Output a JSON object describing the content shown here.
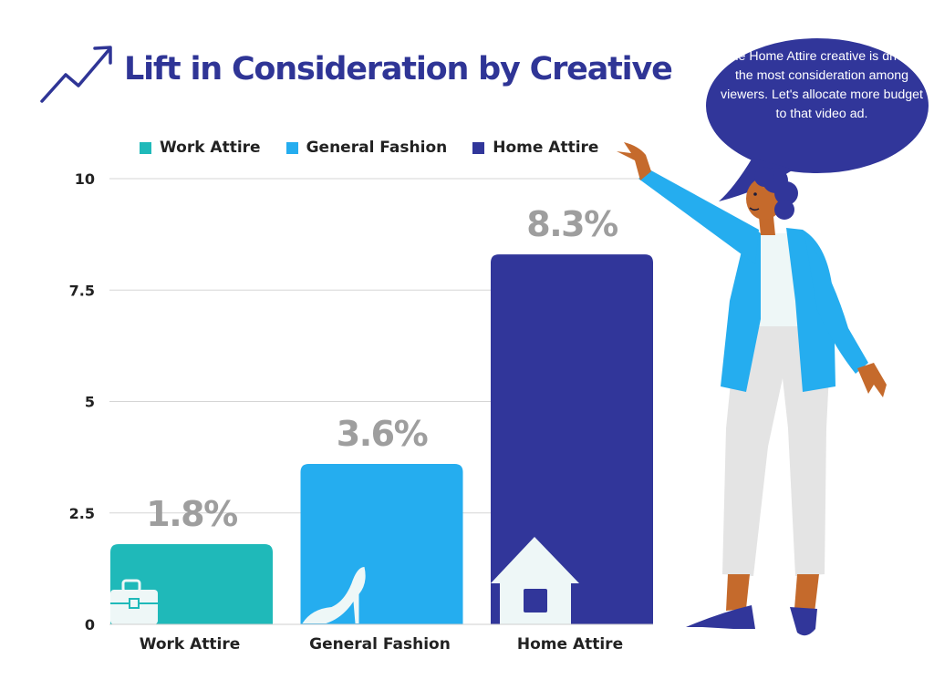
{
  "colors": {
    "title": "#2f3596",
    "work": "#1fb9b9",
    "fashion": "#25adef",
    "home": "#31369a",
    "value_label": "#9e9e9e",
    "grid": "#d5d5d5",
    "icon": "#eef7f7"
  },
  "speech": {
    "text": "The Home Attire creative is driving the most consideration among viewers. Let's allocate more budget to that video ad."
  },
  "chart_data": {
    "type": "bar",
    "title": "Lift in Consideration by Creative",
    "categories": [
      "Work Attire",
      "General Fashion",
      "Home Attire"
    ],
    "values": [
      1.8,
      3.6,
      8.3
    ],
    "value_labels": [
      "1.8%",
      "3.6%",
      "8.3%"
    ],
    "legend": [
      "Work Attire",
      "General Fashion",
      "Home Attire"
    ],
    "legend_position": "top",
    "bar_icons": [
      "briefcase-icon",
      "high-heel-icon",
      "house-icon"
    ],
    "ylim": [
      0,
      10
    ],
    "yticks": [
      0,
      2.5,
      5,
      7.5,
      10
    ],
    "ytick_labels": [
      "0",
      "2.5",
      "5",
      "7.5",
      "10"
    ],
    "grid": true,
    "xlabel": "",
    "ylabel": ""
  }
}
